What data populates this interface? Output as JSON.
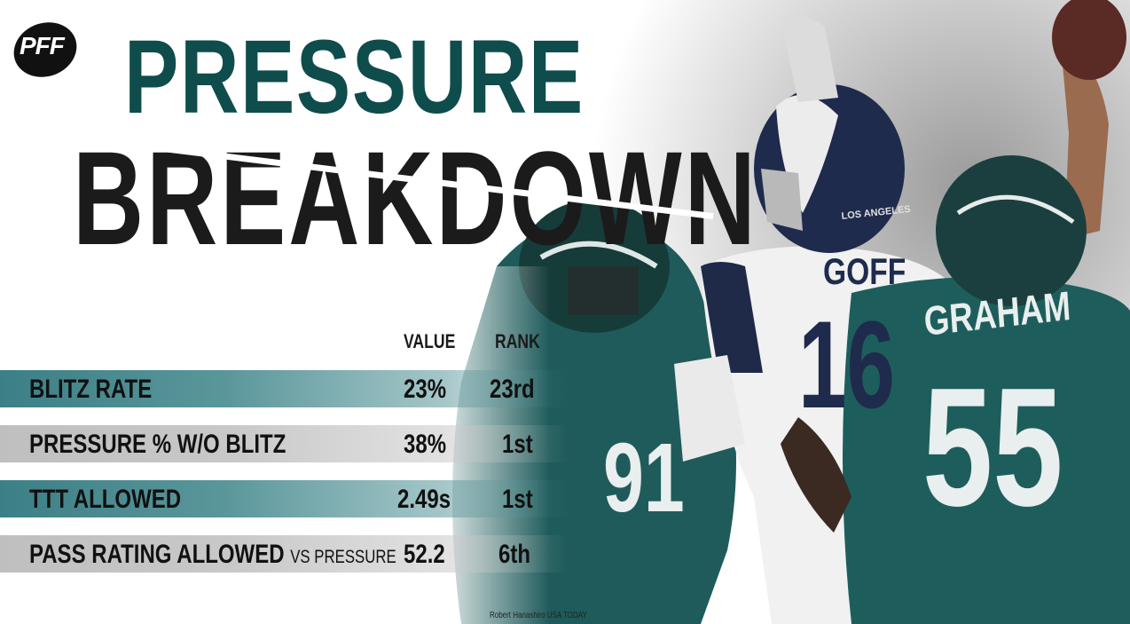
{
  "brand": {
    "logo_text": "PFF"
  },
  "title": {
    "line1": "PRESSURE",
    "line2": "BREAKDOWN"
  },
  "colors": {
    "teal_title": "#0f4c4c",
    "teal_row": "#3c7f86",
    "gray_row": "#c4c4c4",
    "dark": "#1b1b1b"
  },
  "table": {
    "headers": {
      "value": "VALUE",
      "rank": "RANK"
    },
    "rows": [
      {
        "label": "BLITZ RATE",
        "sub": "",
        "value": "23%",
        "rank": "23rd"
      },
      {
        "label": "PRESSURE % W/O BLITZ",
        "sub": "",
        "value": "38%",
        "rank": "1st"
      },
      {
        "label": "TTT ALLOWED",
        "sub": "",
        "value": "2.49s",
        "rank": "1st"
      },
      {
        "label": "PASS RATING ALLOWED",
        "sub": "VS PRESSURE",
        "value": "52.2",
        "rank": "6th"
      }
    ]
  },
  "photo": {
    "jersey_names": [
      "GOFF",
      "GRAHAM"
    ],
    "jersey_numbers": [
      "16",
      "55",
      "91"
    ],
    "helmet_text": "LOS ANGELES",
    "credit": "Robert Hanashiro USA TODAY"
  }
}
